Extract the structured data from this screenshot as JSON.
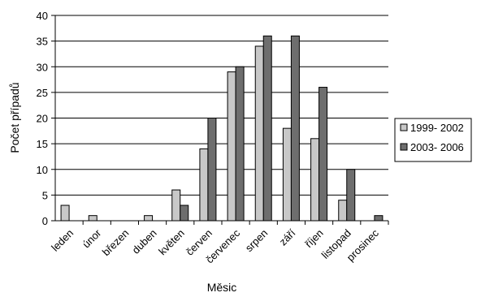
{
  "chart_data": {
    "type": "bar",
    "title": "",
    "xlabel": "Měsic",
    "ylabel": "Počet případů",
    "ylim": [
      0,
      40
    ],
    "yticks": [
      0,
      5,
      10,
      15,
      20,
      25,
      30,
      35,
      40
    ],
    "grid": true,
    "legend_position": "right",
    "categories": [
      "leden",
      "únor",
      "březen",
      "duben",
      "květen",
      "červen",
      "červenec",
      "srpen",
      "září",
      "říjen",
      "listopad",
      "prosinec"
    ],
    "series": [
      {
        "name": "1999- 2002",
        "color": "#c8c8c8",
        "values": [
          3,
          1,
          0,
          1,
          6,
          14,
          29,
          34,
          18,
          16,
          4,
          0
        ]
      },
      {
        "name": "2003- 2006",
        "color": "#6e6e6e",
        "values": [
          0,
          0,
          0,
          0,
          3,
          20,
          30,
          36,
          36,
          26,
          10,
          1
        ]
      }
    ]
  }
}
